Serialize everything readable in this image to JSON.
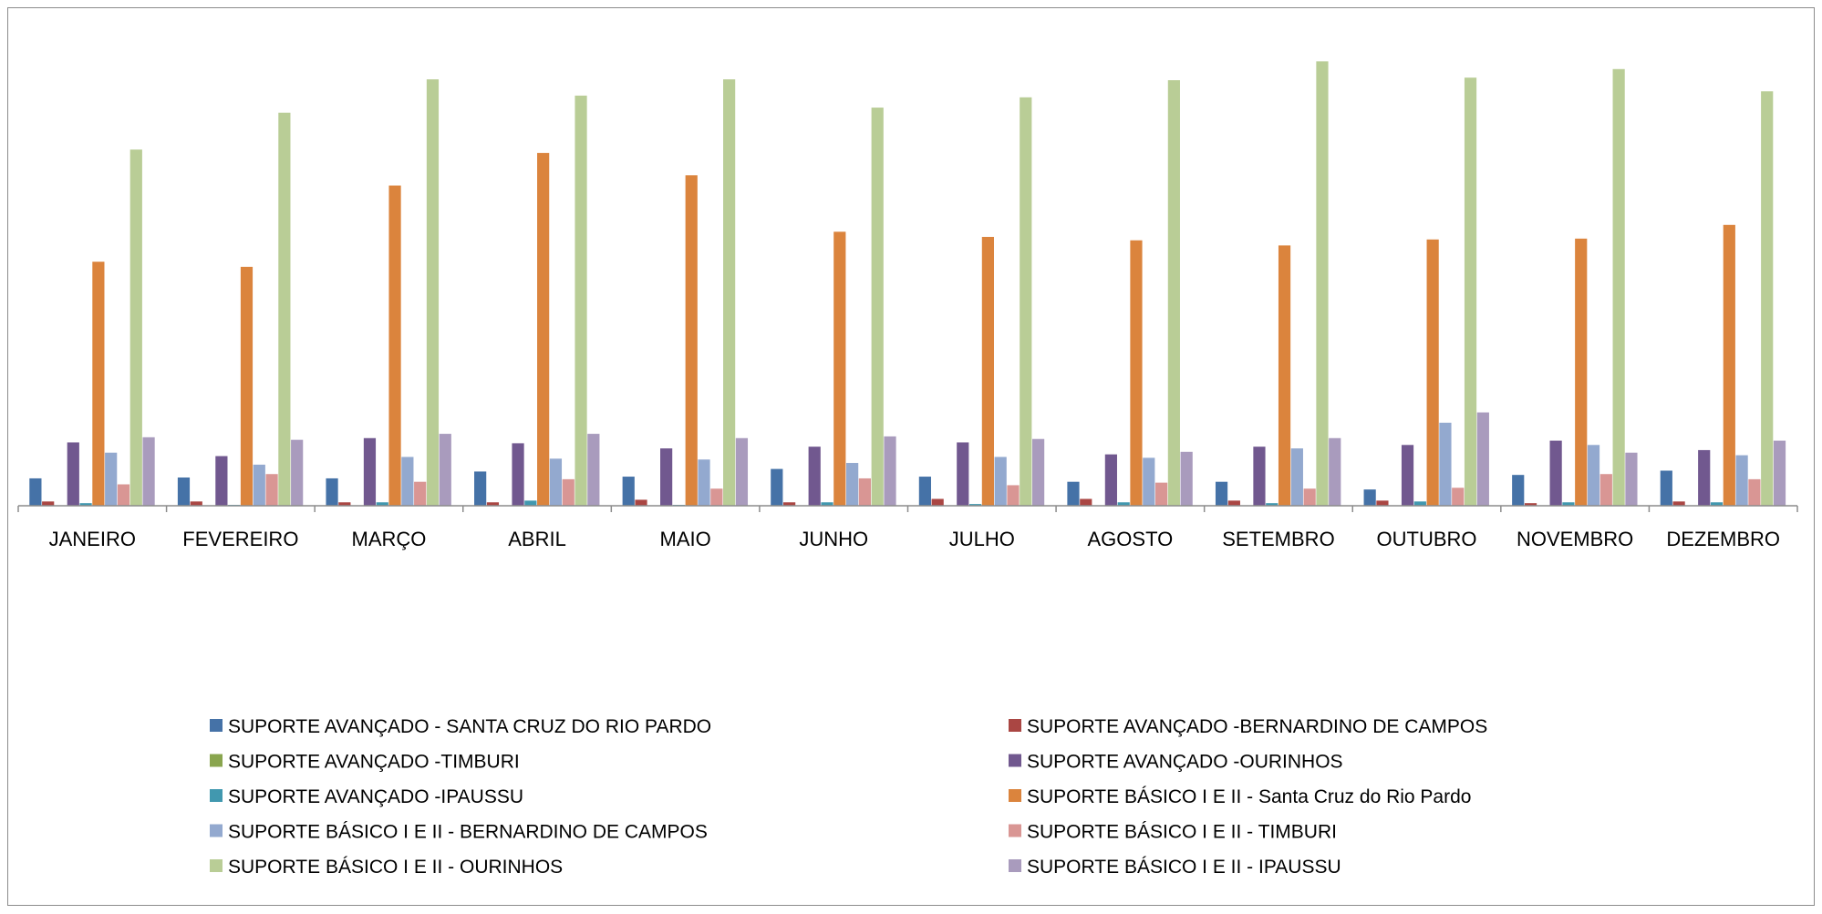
{
  "chart_data": {
    "type": "bar",
    "title": "",
    "xlabel": "",
    "ylabel": "",
    "ylim": [
      0,
      530
    ],
    "grid": false,
    "legend_position": "bottom",
    "categories": [
      "JANEIRO",
      "FEVEREIRO",
      "MARÇO",
      "ABRIL",
      "MAIO",
      "JUNHO",
      "JULHO",
      "AGOSTO",
      "SETEMBRO",
      "OUTUBRO",
      "NOVEMBRO",
      "DEZEMBRO"
    ],
    "series": [
      {
        "name": "SUPORTE AVANÇADO - SANTA CRUZ DO RIO PARDO",
        "color": "#4572A7",
        "values": [
          32,
          33,
          32,
          40,
          34,
          43,
          34,
          28,
          28,
          19,
          36,
          41
        ]
      },
      {
        "name": "SUPORTE AVANÇADO -BERNARDINO DE CAMPOS",
        "color": "#AA4643",
        "values": [
          5,
          5,
          4,
          4,
          7,
          4,
          8,
          8,
          6,
          6,
          3,
          5
        ]
      },
      {
        "name": "SUPORTE AVANÇADO -TIMBURI",
        "color": "#89A54E",
        "values": [
          0,
          0,
          0,
          0,
          0,
          0,
          0,
          0,
          0,
          0,
          0,
          0
        ]
      },
      {
        "name": "SUPORTE AVANÇADO -OURINHOS",
        "color": "#71588F",
        "values": [
          74,
          58,
          79,
          73,
          67,
          69,
          74,
          60,
          69,
          71,
          76,
          65
        ]
      },
      {
        "name": "SUPORTE AVANÇADO -IPAUSSU",
        "color": "#4198AF",
        "values": [
          3,
          1,
          4,
          6,
          1,
          4,
          2,
          4,
          3,
          5,
          4,
          4
        ]
      },
      {
        "name": "SUPORTE BÁSICO I E II - Santa Cruz do Rio Pardo",
        "color": "#DB843D",
        "values": [
          285,
          279,
          374,
          412,
          386,
          320,
          314,
          310,
          304,
          311,
          312,
          328
        ]
      },
      {
        "name": "SUPORTE BÁSICO I E II - BERNARDINO DE CAMPOS",
        "color": "#93A9CF",
        "values": [
          62,
          48,
          57,
          55,
          54,
          50,
          57,
          56,
          67,
          97,
          71,
          59
        ]
      },
      {
        "name": "SUPORTE BÁSICO I E II - TIMBURI",
        "color": "#D99694",
        "values": [
          25,
          37,
          28,
          31,
          20,
          32,
          24,
          27,
          20,
          21,
          37,
          31
        ]
      },
      {
        "name": "SUPORTE BÁSICO I E II - OURINHOS",
        "color": "#B9CD96",
        "values": [
          416,
          459,
          498,
          479,
          498,
          465,
          477,
          497,
          519,
          500,
          510,
          484
        ]
      },
      {
        "name": "SUPORTE BÁSICO I E II - IPAUSSU",
        "color": "#A99BBD",
        "values": [
          80,
          77,
          84,
          84,
          79,
          81,
          78,
          63,
          79,
          109,
          62,
          76
        ]
      }
    ]
  }
}
